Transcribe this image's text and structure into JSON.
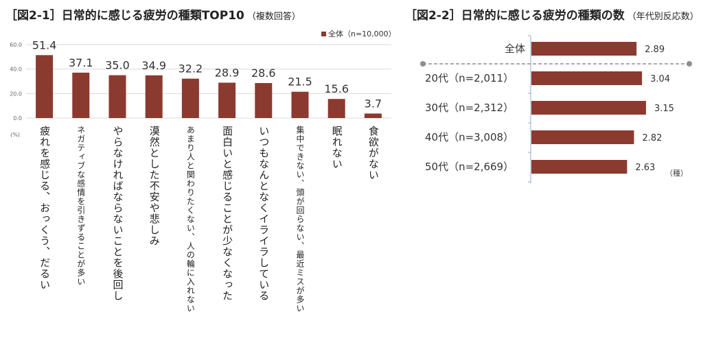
{
  "chart_data": [
    {
      "type": "bar",
      "title": "［図2-1］日常的に感じる疲労の種類TOP10",
      "subtitle": "（複数回答）",
      "legend": "全体（n=10,000）",
      "legend_position": "top-right",
      "unit_label": "(%)",
      "ylim": [
        0,
        60
      ],
      "yticks": [
        "0.0",
        "20.0",
        "40.0",
        "60.0"
      ],
      "grid": true,
      "color": "#8b3a2f",
      "categories": [
        "疲れを感じる、おっくう、だるい",
        "ネガティブな感情を引きずることが多い",
        "やらなければならないことを後回し",
        "漠然とした不安や悲しみ",
        "あまり人と関わりたくない、人の輪に入れない",
        "面白いと感じることが少なくなった",
        "いつもなんとなくイライラしている",
        "集中できない、頭が回らない、最近ミスが多い",
        "眠れない",
        "食欲がない"
      ],
      "values": [
        51.4,
        37.1,
        35.0,
        34.9,
        32.2,
        28.9,
        28.6,
        21.5,
        15.6,
        3.7
      ],
      "value_labels": [
        "51.4",
        "37.1",
        "35.0",
        "34.9",
        "32.2",
        "28.9",
        "28.6",
        "21.5",
        "15.6",
        "3.7"
      ]
    },
    {
      "type": "bar",
      "orientation": "horizontal",
      "title": "［図2-2］日常的に感じる疲労の種類の数",
      "subtitle": "（年代別反応数）",
      "unit_label": "（種）",
      "color": "#8b3a2f",
      "categories": [
        "全体",
        "20代（n=2,011）",
        "30代（n=2,312）",
        "40代（n=3,008）",
        "50代（n=2,669）"
      ],
      "values": [
        2.89,
        3.04,
        3.15,
        2.82,
        2.63
      ],
      "value_labels": [
        "2.89",
        "3.04",
        "3.15",
        "2.82",
        "2.63"
      ]
    }
  ]
}
